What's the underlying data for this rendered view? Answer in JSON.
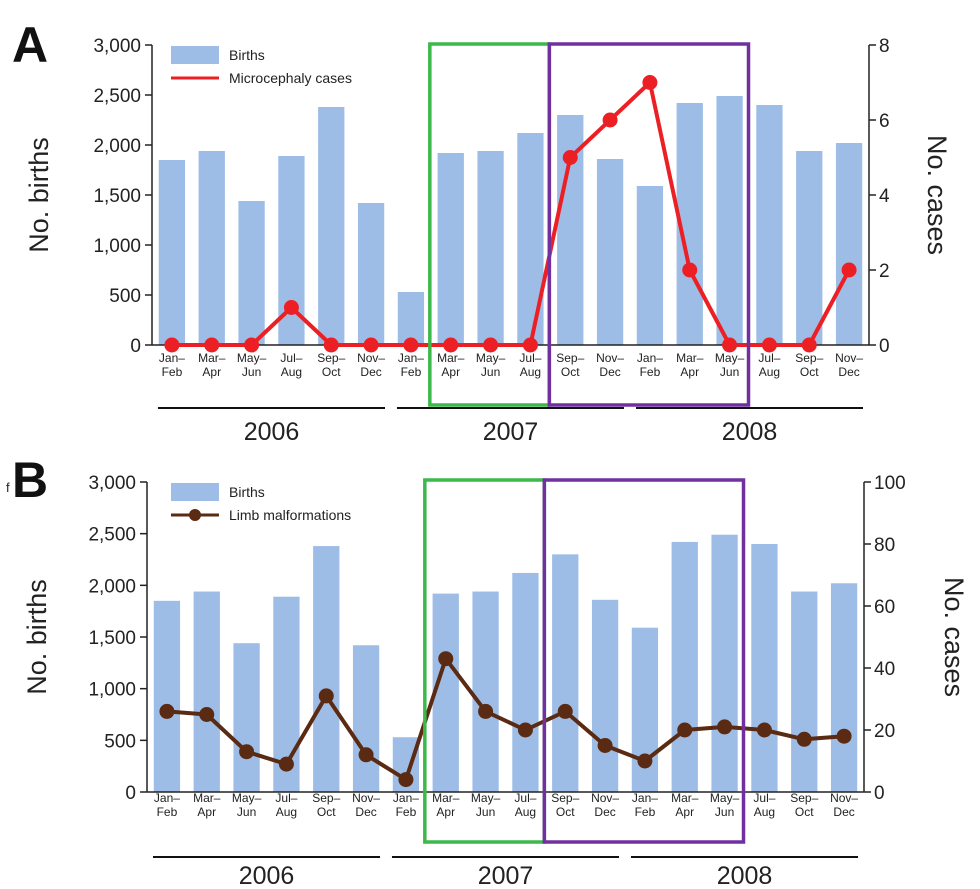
{
  "stray_text": "f",
  "chart_data": [
    {
      "panel": "A",
      "type": "bar",
      "categories": [
        "Jan–Feb",
        "Mar–Apr",
        "May–Jun",
        "Jul–Aug",
        "Sep–Oct",
        "Nov–Dec",
        "Jan–Feb",
        "Mar–Apr",
        "May–Jun",
        "Jul–Aug",
        "Sep–Oct",
        "Nov–Dec",
        "Jan–Feb",
        "Mar–Apr",
        "May–Jun",
        "Jul–Aug",
        "Sep–Oct",
        "Nov–Dec"
      ],
      "years": [
        {
          "label": "2006",
          "from": 0,
          "to": 5
        },
        {
          "label": "2007",
          "from": 6,
          "to": 11
        },
        {
          "label": "2008",
          "from": 12,
          "to": 17
        }
      ],
      "series": [
        {
          "name": "Births",
          "type": "bar",
          "axis": "left",
          "color": "#9dbde6",
          "values": [
            1850,
            1940,
            1440,
            1890,
            2380,
            1420,
            530,
            1920,
            1940,
            2120,
            2300,
            1860,
            1590,
            2420,
            2490,
            2400,
            1940,
            2020
          ]
        },
        {
          "name": "Microcephaly cases",
          "type": "line",
          "axis": "right",
          "color": "#ec2024",
          "marker": "circle",
          "values": [
            0,
            0,
            0,
            1,
            0,
            0,
            0,
            0,
            0,
            0,
            5,
            6,
            7,
            2,
            0,
            0,
            0,
            2
          ]
        }
      ],
      "ylabel": "No. births",
      "y2label": "No. cases",
      "ylim": [
        0,
        3000
      ],
      "y2lim": [
        0,
        8
      ],
      "yticks": [
        "0",
        "500",
        "1,000",
        "1,500",
        "2,000",
        "2,500",
        "3,000"
      ],
      "y2ticks": [
        "0",
        "2",
        "4",
        "6",
        "8"
      ],
      "highlight_boxes": [
        {
          "color": "#3cb94a",
          "from": 7,
          "to": 9
        },
        {
          "color": "#7030a0",
          "from": 10,
          "to": 14
        }
      ]
    },
    {
      "panel": "B",
      "type": "bar",
      "categories": [
        "Jan–Feb",
        "Mar–Apr",
        "May–Jun",
        "Jul–Aug",
        "Sep–Oct",
        "Nov–Dec",
        "Jan–Feb",
        "Mar–Apr",
        "May–Jun",
        "Jul–Aug",
        "Sep–Oct",
        "Nov–Dec",
        "Jan–Feb",
        "Mar–Apr",
        "May–Jun",
        "Jul–Aug",
        "Sep–Oct",
        "Nov–Dec"
      ],
      "years": [
        {
          "label": "2006",
          "from": 0,
          "to": 5
        },
        {
          "label": "2007",
          "from": 6,
          "to": 11
        },
        {
          "label": "2008",
          "from": 12,
          "to": 17
        }
      ],
      "series": [
        {
          "name": "Births",
          "type": "bar",
          "axis": "left",
          "color": "#9dbde6",
          "values": [
            1850,
            1940,
            1440,
            1890,
            2380,
            1420,
            530,
            1920,
            1940,
            2120,
            2300,
            1860,
            1590,
            2420,
            2490,
            2400,
            1940,
            2020
          ]
        },
        {
          "name": "Limb malformations",
          "type": "line",
          "axis": "right",
          "color": "#5a2a12",
          "marker": "circle",
          "values": [
            26,
            25,
            13,
            9,
            31,
            12,
            4,
            43,
            26,
            20,
            26,
            15,
            10,
            20,
            21,
            20,
            17,
            18
          ]
        }
      ],
      "ylabel": "No. births",
      "y2label": "No. cases",
      "ylim": [
        0,
        3000
      ],
      "y2lim": [
        0,
        100
      ],
      "yticks": [
        "0",
        "500",
        "1,000",
        "1,500",
        "2,000",
        "2,500",
        "3,000"
      ],
      "y2ticks": [
        "0",
        "20",
        "40",
        "60",
        "80",
        "100"
      ],
      "highlight_boxes": [
        {
          "color": "#3cb94a",
          "from": 7,
          "to": 9
        },
        {
          "color": "#7030a0",
          "from": 10,
          "to": 14
        }
      ]
    }
  ]
}
